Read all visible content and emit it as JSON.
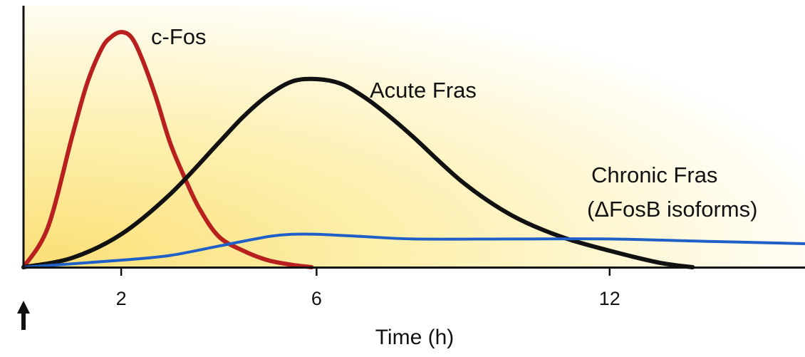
{
  "chart_data": {
    "type": "line",
    "xlabel": "Time (h)",
    "ylabel": "",
    "xlim": [
      0,
      16
    ],
    "ylim": [
      0,
      1.0
    ],
    "x_ticks": [
      2,
      6,
      12
    ],
    "x_tick_labels": [
      "2",
      "6",
      "12"
    ],
    "stimulus_marker": "up-arrow-icon",
    "background": {
      "left": "#fbe07a",
      "right": "#ffffff"
    },
    "series": [
      {
        "name": "c-Fos",
        "color": "#b81f1f",
        "x": [
          0,
          0.5,
          1.0,
          1.3,
          1.6,
          1.8,
          2.0,
          2.2,
          2.4,
          2.7,
          3.0,
          3.3,
          3.6,
          4.0,
          4.5,
          5.0,
          5.5,
          5.9
        ],
        "y": [
          0,
          0.17,
          0.56,
          0.78,
          0.93,
          0.98,
          1.0,
          0.98,
          0.9,
          0.73,
          0.53,
          0.38,
          0.25,
          0.13,
          0.07,
          0.03,
          0.01,
          0
        ]
      },
      {
        "name": "Acute Fras",
        "label_lines": [
          "Acute Fras"
        ],
        "color": "#111111",
        "x": [
          0,
          1.0,
          2.0,
          3.0,
          4.0,
          4.5,
          5.0,
          5.5,
          6.0,
          6.5,
          7.0,
          7.5,
          8.0,
          9.0,
          10.0,
          11.0,
          12.0,
          13.0,
          13.7
        ],
        "y": [
          0,
          0.04,
          0.14,
          0.31,
          0.53,
          0.64,
          0.73,
          0.79,
          0.8,
          0.78,
          0.72,
          0.64,
          0.55,
          0.36,
          0.22,
          0.13,
          0.07,
          0.02,
          0
        ]
      },
      {
        "name": "Chronic Fras (ΔFosB isoforms)",
        "label_lines": [
          "Chronic Fras",
          "(ΔFosB isoforms)"
        ],
        "color": "#1f5fc8",
        "x": [
          0,
          2.0,
          3.0,
          4.0,
          5.0,
          5.5,
          6.0,
          7.0,
          8.0,
          10.0,
          12.0,
          14.0,
          16.0
        ],
        "y": [
          0,
          0.03,
          0.05,
          0.09,
          0.13,
          0.14,
          0.14,
          0.13,
          0.12,
          0.12,
          0.12,
          0.11,
          0.1
        ]
      }
    ]
  }
}
